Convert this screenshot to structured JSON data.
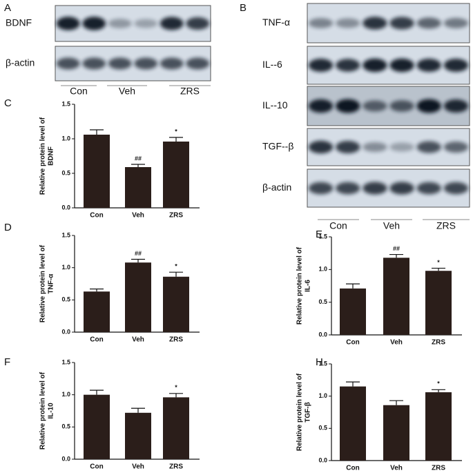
{
  "blots": [
    {
      "panel": "A",
      "rows": [
        "BDNF",
        "β-actin"
      ],
      "groups": [
        "Con",
        "Veh",
        "ZRS"
      ]
    },
    {
      "panel": "B",
      "rows": [
        "TNF-α",
        "IL--6",
        "IL--10",
        "TGF--β",
        "β-actin"
      ],
      "groups": [
        "Con",
        "Veh",
        "ZRS"
      ]
    }
  ],
  "chart_data": [
    {
      "type": "bar",
      "panel": "C",
      "ylabel": [
        "Relative protein level of",
        "BDNF"
      ],
      "categories": [
        "Con",
        "Veh",
        "ZRS"
      ],
      "values": [
        1.06,
        0.59,
        0.96
      ],
      "errors": [
        0.07,
        0.04,
        0.06
      ],
      "annotations": [
        null,
        "##",
        "*"
      ],
      "color": "#2b1e1a",
      "ylim": [
        0,
        1.5
      ],
      "yticks": [
        {
          "value": 0,
          "label": "0.0"
        },
        0.5,
        {
          "value": 1,
          "label": "1.0"
        },
        1.5
      ]
    },
    {
      "type": "bar",
      "panel": "D",
      "ylabel": [
        "Relative protein level of",
        "TNF-α"
      ],
      "categories": [
        "Con",
        "Veh",
        "ZRS"
      ],
      "values": [
        0.63,
        1.08,
        0.86
      ],
      "errors": [
        0.04,
        0.05,
        0.07
      ],
      "annotations": [
        null,
        "##",
        "*"
      ],
      "color": "#2b1e1a",
      "ylim": [
        0,
        1.5
      ],
      "yticks": [
        {
          "value": 0,
          "label": "0.0"
        },
        0.5,
        {
          "value": 1,
          "label": "1.0"
        },
        1.5
      ]
    },
    {
      "type": "bar",
      "panel": "E",
      "ylabel": [
        "Relative protein level of",
        "IL-6"
      ],
      "categories": [
        "Con",
        "Veh",
        "ZRS"
      ],
      "values": [
        0.71,
        1.18,
        0.98
      ],
      "errors": [
        0.07,
        0.05,
        0.04
      ],
      "annotations": [
        null,
        "##",
        "*"
      ],
      "color": "#2b1e1a",
      "ylim": [
        0,
        1.5
      ],
      "yticks": [
        {
          "value": 0,
          "label": "0.0"
        },
        0.5,
        {
          "value": 1,
          "label": "1.0"
        },
        1.5
      ]
    },
    {
      "type": "bar",
      "panel": "F",
      "ylabel": [
        "Relative protein level of",
        "IL-10"
      ],
      "categories": [
        "Con",
        "Veh",
        "ZRS"
      ],
      "values": [
        1.0,
        0.72,
        0.96
      ],
      "errors": [
        0.07,
        0.07,
        0.06
      ],
      "annotations": [
        null,
        null,
        "*"
      ],
      "color": "#2b1e1a",
      "ylim": [
        0,
        1.5
      ],
      "yticks": [
        {
          "value": 0,
          "label": "0.0"
        },
        0.5,
        {
          "value": 1,
          "label": "1.0"
        },
        1.5
      ]
    },
    {
      "type": "bar",
      "panel": "H",
      "ylabel": [
        "Relative protein level of",
        "TGF-β"
      ],
      "categories": [
        "Con",
        "Veh",
        "ZRS"
      ],
      "values": [
        1.15,
        0.86,
        1.06
      ],
      "errors": [
        0.07,
        0.07,
        0.04
      ],
      "annotations": [
        null,
        null,
        "*"
      ],
      "color": "#2b1e1a",
      "ylim": [
        0,
        1.5
      ],
      "yticks": [
        {
          "value": 0,
          "label": "0.0"
        },
        0.5,
        {
          "value": 1,
          "label": "1.0"
        },
        1.5
      ]
    }
  ]
}
